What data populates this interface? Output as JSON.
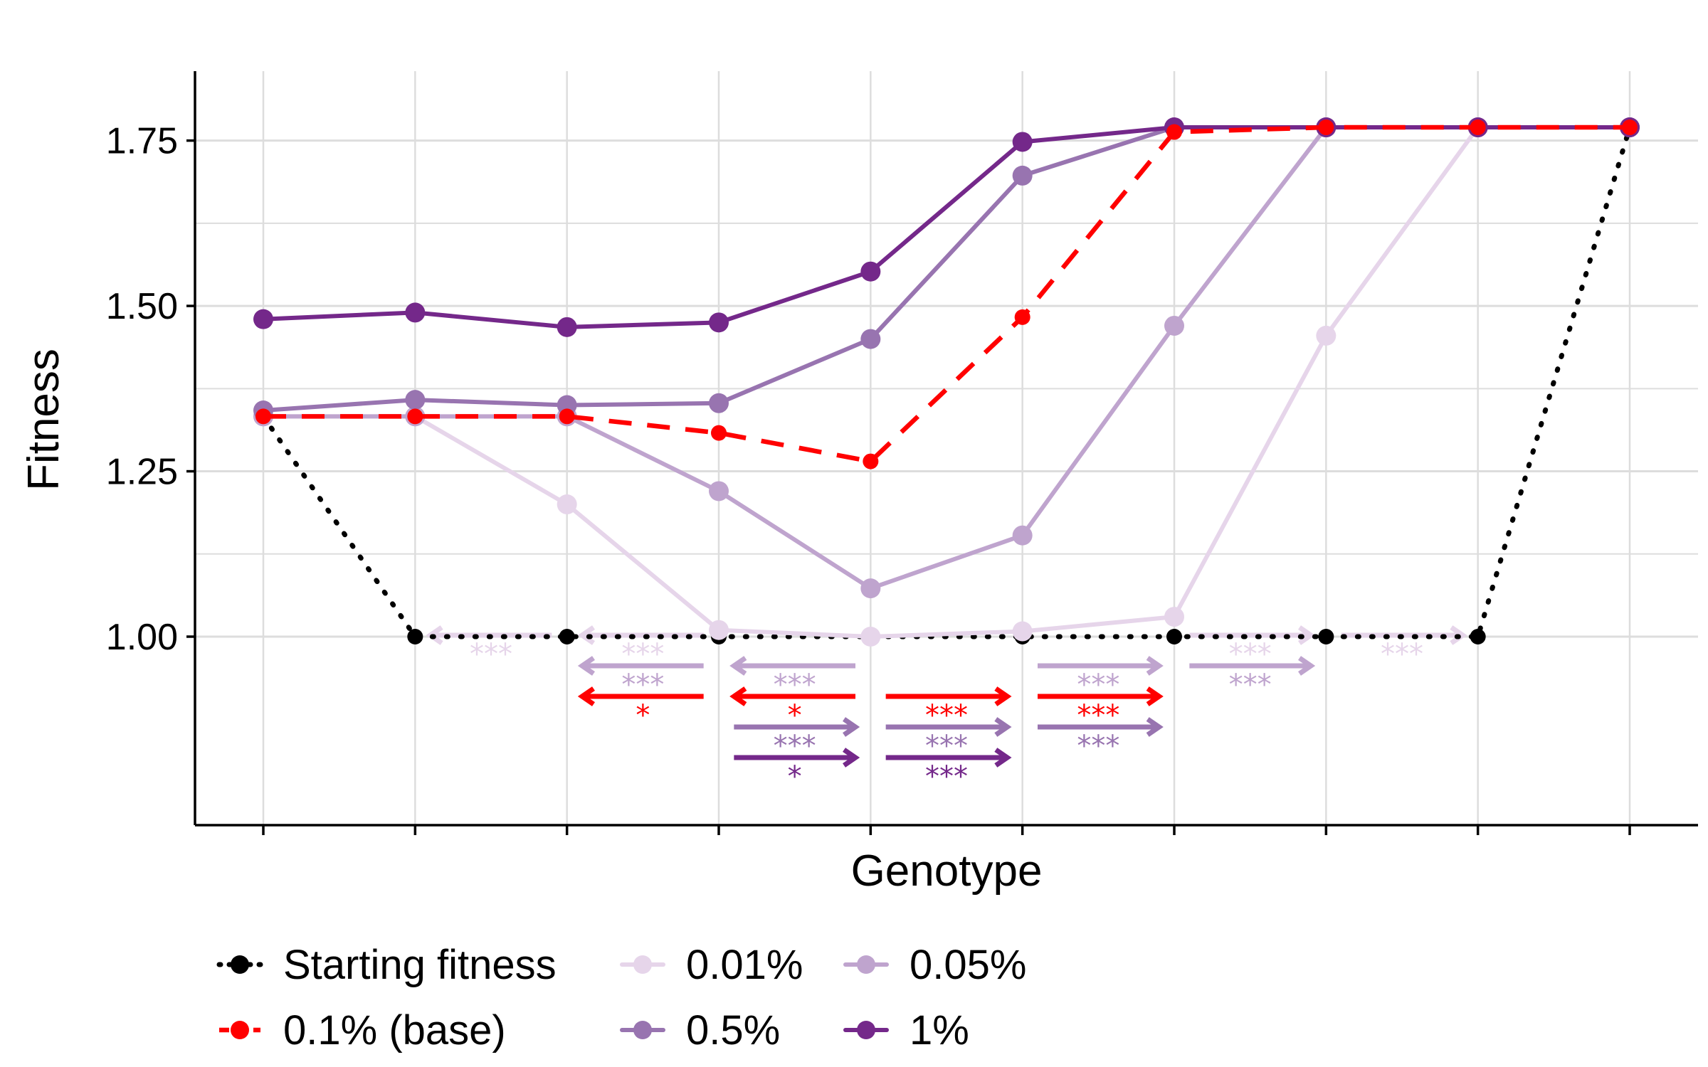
{
  "chart_data": {
    "type": "line",
    "title": "",
    "xlabel": "Genotype",
    "ylabel": "Fitness",
    "x": [
      1,
      2,
      3,
      4,
      5,
      6,
      7,
      8,
      9,
      10
    ],
    "xlim": [
      0.55,
      10.45
    ],
    "ylim": [
      0.715,
      1.855
    ],
    "yticks": [
      1.0,
      1.25,
      1.5,
      1.75
    ],
    "ytick_labels": [
      "1.00",
      "1.25",
      "1.50",
      "1.75"
    ],
    "grid": true,
    "legend_position": "bottom",
    "series": [
      {
        "name": "Starting fitness",
        "color": "#000000",
        "line": "dotted",
        "values": [
          1.333,
          1.0,
          1.0,
          1.0,
          1.0,
          1.0,
          1.0,
          1.0,
          1.0,
          1.77
        ]
      },
      {
        "name": "0.01%",
        "color": "#E6D5EA",
        "line": "solid",
        "values": [
          1.333,
          1.333,
          1.2,
          1.01,
          1.0,
          1.008,
          1.03,
          1.455,
          1.77,
          1.77
        ]
      },
      {
        "name": "0.05%",
        "color": "#BFA4CE",
        "line": "solid",
        "values": [
          1.333,
          1.333,
          1.333,
          1.22,
          1.073,
          1.153,
          1.47,
          1.77,
          1.77,
          1.77
        ]
      },
      {
        "name": "0.5%",
        "color": "#9874B0",
        "line": "solid",
        "values": [
          1.342,
          1.358,
          1.35,
          1.353,
          1.45,
          1.697,
          1.77,
          1.77,
          1.77,
          1.77
        ]
      },
      {
        "name": "1%",
        "color": "#74288A",
        "line": "solid",
        "values": [
          1.48,
          1.49,
          1.468,
          1.475,
          1.552,
          1.748,
          1.77,
          1.77,
          1.77,
          1.77
        ]
      },
      {
        "name": "0.1% (base)",
        "color": "#FF0000",
        "line": "dashed",
        "values": [
          1.333,
          1.333,
          1.333,
          1.308,
          1.265,
          1.483,
          1.763,
          1.77,
          1.77,
          1.77
        ]
      }
    ],
    "legend_layout": [
      [
        "Starting fitness",
        "0.01%",
        "0.05%"
      ],
      [
        "0.1% (base)",
        "0.5%",
        "1%"
      ]
    ],
    "annotations": [
      {
        "from": 2.1,
        "to": 2.9,
        "dir": "left",
        "color": "#E6D5EA",
        "label": "***",
        "row": 0
      },
      {
        "from": 3.1,
        "to": 3.9,
        "dir": "left",
        "color": "#E6D5EA",
        "label": "***",
        "row": 0
      },
      {
        "from": 3.1,
        "to": 3.9,
        "dir": "left",
        "color": "#BFA4CE",
        "label": "***",
        "row": 1
      },
      {
        "from": 3.1,
        "to": 3.9,
        "dir": "left",
        "color": "#FF0000",
        "label": "*",
        "row": 2
      },
      {
        "from": 4.1,
        "to": 4.9,
        "dir": "left",
        "color": "#BFA4CE",
        "label": "***",
        "row": 1
      },
      {
        "from": 4.1,
        "to": 4.9,
        "dir": "left",
        "color": "#FF0000",
        "label": "*",
        "row": 2
      },
      {
        "from": 4.1,
        "to": 4.9,
        "dir": "right",
        "color": "#9874B0",
        "label": "***",
        "row": 3
      },
      {
        "from": 4.1,
        "to": 4.9,
        "dir": "right",
        "color": "#74288A",
        "label": "*",
        "row": 4
      },
      {
        "from": 5.1,
        "to": 5.9,
        "dir": "right",
        "color": "#FF0000",
        "label": "***",
        "row": 2
      },
      {
        "from": 5.1,
        "to": 5.9,
        "dir": "right",
        "color": "#9874B0",
        "label": "***",
        "row": 3
      },
      {
        "from": 5.1,
        "to": 5.9,
        "dir": "right",
        "color": "#74288A",
        "label": "***",
        "row": 4
      },
      {
        "from": 6.1,
        "to": 6.9,
        "dir": "right",
        "color": "#BFA4CE",
        "label": "***",
        "row": 1
      },
      {
        "from": 6.1,
        "to": 6.9,
        "dir": "right",
        "color": "#FF0000",
        "label": "***",
        "row": 2
      },
      {
        "from": 6.1,
        "to": 6.9,
        "dir": "right",
        "color": "#9874B0",
        "label": "***",
        "row": 3
      },
      {
        "from": 7.1,
        "to": 7.9,
        "dir": "right",
        "color": "#E6D5EA",
        "label": "***",
        "row": 0
      },
      {
        "from": 7.1,
        "to": 7.9,
        "dir": "right",
        "color": "#BFA4CE",
        "label": "***",
        "row": 1
      },
      {
        "from": 8.1,
        "to": 8.9,
        "dir": "right",
        "color": "#E6D5EA",
        "label": "***",
        "row": 0
      }
    ]
  }
}
